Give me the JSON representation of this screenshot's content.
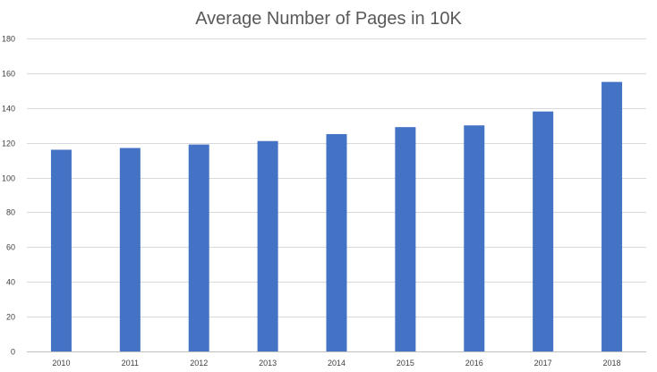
{
  "chart_data": {
    "type": "bar",
    "title": "Average Number of Pages in 10K",
    "xlabel": "",
    "ylabel": "",
    "categories": [
      "2010",
      "2011",
      "2012",
      "2013",
      "2014",
      "2015",
      "2016",
      "2017",
      "2018"
    ],
    "values": [
      116,
      117,
      119,
      121,
      125,
      129,
      130,
      138,
      155
    ],
    "ylim": [
      0,
      180
    ],
    "yticks": [
      0,
      20,
      40,
      60,
      80,
      100,
      120,
      140,
      160,
      180
    ],
    "grid": true,
    "legend": "none",
    "colors": {
      "bar": "#4472C4",
      "grid": "#D9D9D9",
      "axis": "#BFBFBF",
      "text": "#404040",
      "title": "#595959"
    }
  }
}
